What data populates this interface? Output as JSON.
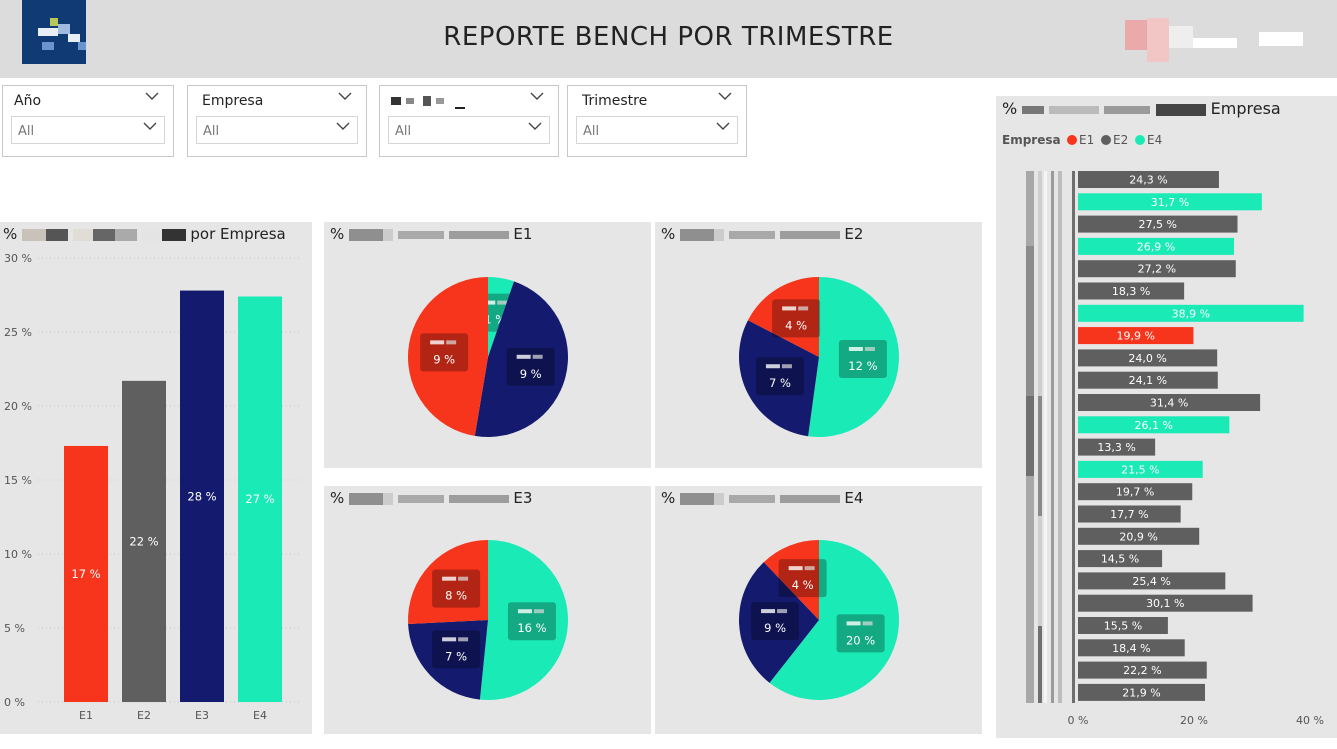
{
  "header": {
    "title": "REPORTE BENCH POR TRIMESTRE",
    "logo_icon": "company-logo-icon",
    "user_icon": "blurred-user-info"
  },
  "slicers": [
    {
      "label": "Año",
      "value": "All"
    },
    {
      "label": "Empresa",
      "value": "All"
    },
    {
      "label": "",
      "value": "All"
    },
    {
      "label": "Trimestre",
      "value": "All"
    }
  ],
  "panels": {
    "bar": {
      "prefix": "%",
      "suffix": "por Empresa"
    },
    "pie_e1": {
      "prefix": "%",
      "suffix": "E1"
    },
    "pie_e2": {
      "prefix": "%",
      "suffix": "E2"
    },
    "pie_e3": {
      "prefix": "%",
      "suffix": "E3"
    },
    "pie_e4": {
      "prefix": "%",
      "suffix": "E4"
    },
    "hbar": {
      "prefix": "%",
      "suffix": "Empresa"
    }
  },
  "colors": {
    "E1": "#f7341c",
    "E2": "#5f5f5f",
    "E3": "#141b6e",
    "E4": "#19eab6"
  },
  "chart_data": [
    {
      "type": "bar",
      "categories": [
        "E1",
        "E2",
        "E3",
        "E4"
      ],
      "values": [
        17.3,
        21.7,
        27.8,
        27.4
      ],
      "data_labels": [
        "17 %",
        "22 %",
        "28 %",
        "27 %"
      ],
      "ylim": [
        0,
        30
      ],
      "yticks": [
        0,
        5,
        10,
        15,
        20,
        25,
        30
      ],
      "ytick_labels": [
        "0 %",
        "5 %",
        "10 %",
        "15 %",
        "20 %",
        "25 %",
        "30 %"
      ],
      "grid": true
    },
    {
      "type": "pie",
      "empresa": "E1",
      "slices": [
        {
          "category": "E4",
          "value": 1,
          "label": "1 %"
        },
        {
          "category": "E3",
          "value": 9,
          "label": "9 %"
        },
        {
          "category": "E1",
          "value": 9,
          "label": "9 %"
        }
      ]
    },
    {
      "type": "pie",
      "empresa": "E2",
      "slices": [
        {
          "category": "E4",
          "value": 12,
          "label": "12 %"
        },
        {
          "category": "E3",
          "value": 7,
          "label": "7 %"
        },
        {
          "category": "E1",
          "value": 4,
          "label": "4 %"
        }
      ]
    },
    {
      "type": "pie",
      "empresa": "E3",
      "slices": [
        {
          "category": "E4",
          "value": 16,
          "label": "16 %"
        },
        {
          "category": "E3",
          "value": 7,
          "label": "7 %"
        },
        {
          "category": "E1",
          "value": 8,
          "label": "8 %"
        }
      ]
    },
    {
      "type": "pie",
      "empresa": "E4",
      "slices": [
        {
          "category": "E4",
          "value": 20,
          "label": "20 %"
        },
        {
          "category": "E3",
          "value": 9,
          "label": "9 %"
        },
        {
          "category": "E1",
          "value": 4,
          "label": "4 %"
        }
      ]
    },
    {
      "type": "bar",
      "orientation": "horizontal",
      "legend": {
        "title": "Empresa",
        "entries": [
          "E1",
          "E2",
          "E4"
        ],
        "position": "top-left"
      },
      "values": [
        24.3,
        31.7,
        27.5,
        26.9,
        27.2,
        18.3,
        38.9,
        19.9,
        24.0,
        24.1,
        31.4,
        26.1,
        13.3,
        21.5,
        19.7,
        17.7,
        20.9,
        14.5,
        25.4,
        30.1,
        15.5,
        18.4,
        22.2,
        21.9
      ],
      "labels": [
        "24,3 %",
        "31,7 %",
        "27,5 %",
        "26,9 %",
        "27,2 %",
        "18,3 %",
        "38,9 %",
        "19,9 %",
        "24,0 %",
        "24,1 %",
        "31,4 %",
        "26,1 %",
        "13,3 %",
        "21,5 %",
        "19,7 %",
        "17,7 %",
        "20,9 %",
        "14,5 %",
        "25,4 %",
        "30,1 %",
        "15,5 %",
        "18,4 %",
        "22,2 %",
        "21,9 %"
      ],
      "series": [
        "E2",
        "E4",
        "E2",
        "E4",
        "E2",
        "E2",
        "E4",
        "E1",
        "E2",
        "E2",
        "E2",
        "E4",
        "E2",
        "E4",
        "E2",
        "E2",
        "E2",
        "E2",
        "E2",
        "E2",
        "E2",
        "E2",
        "E2",
        "E2"
      ],
      "xlim": [
        0,
        40
      ],
      "xticks": [
        0,
        20,
        40
      ],
      "xtick_labels": [
        "0 %",
        "20 %",
        "40 %"
      ]
    }
  ]
}
